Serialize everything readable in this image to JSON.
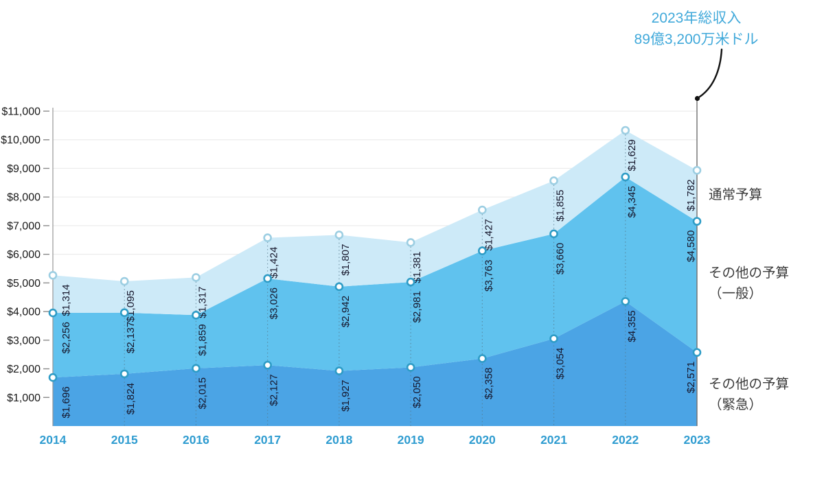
{
  "annotation": {
    "line1": "2023年総収入",
    "line2": "89億3,200万米ドル"
  },
  "legend": {
    "regular": {
      "line1": "通常予算"
    },
    "other_general": {
      "line1": "その他の予算",
      "line2": "（一般）"
    },
    "other_emergency": {
      "line1": "その他の予算",
      "line2": "（緊急）"
    }
  },
  "colors": {
    "band_emergency": "#4BA4E5",
    "band_general": "#60C2EE",
    "band_regular": "#CDEAF8",
    "marker_stroke": "#2E9CC6",
    "marker_stroke_total": "#9CCEE2",
    "marker_fill": "#FFFFFF",
    "year_label": "#2F9CD0",
    "annotation_text": "#41A9DA",
    "axis_line": "#979797",
    "right_line": "#6E6E6E",
    "gridline": "#ECECEC",
    "tick": "#8A8A8A",
    "y_label": "#191919",
    "data_label": "#16162B",
    "legend_text": "#3B3B3B",
    "arrow": "#121212",
    "dotted_guide": "#54788A"
  },
  "chart_data": {
    "type": "area",
    "stacked": true,
    "x": [
      2014,
      2015,
      2016,
      2017,
      2018,
      2019,
      2020,
      2021,
      2022,
      2023
    ],
    "categories": [
      "2014",
      "2015",
      "2016",
      "2017",
      "2018",
      "2019",
      "2020",
      "2021",
      "2022",
      "2023"
    ],
    "series": [
      {
        "name": "その他の予算（緊急）",
        "values": [
          1696,
          1824,
          2015,
          2127,
          1927,
          2050,
          2358,
          3054,
          4355,
          2571
        ]
      },
      {
        "name": "その他の予算（一般）",
        "values": [
          2256,
          2137,
          1859,
          3026,
          2942,
          2981,
          3763,
          3660,
          4345,
          4580
        ]
      },
      {
        "name": "通常予算",
        "values": [
          1314,
          1095,
          1317,
          1424,
          1807,
          1381,
          1427,
          1855,
          1629,
          1782
        ]
      }
    ],
    "totals": [
      5266,
      5056,
      5191,
      6577,
      6676,
      6412,
      7548,
      8569,
      10329,
      8933
    ],
    "data_label_format": "$#,###",
    "y_ticks": [
      "$1,000",
      "$2,000",
      "$3,000",
      "$4,000",
      "$5,000",
      "$6,000",
      "$7,000",
      "$8,000",
      "$9,000",
      "$10,000",
      "$11,000"
    ],
    "ylim": [
      0,
      11000
    ],
    "grid": "horizontal",
    "legend_position": "right",
    "annotation": "2023年総収入 89億3,200万米ドル"
  }
}
